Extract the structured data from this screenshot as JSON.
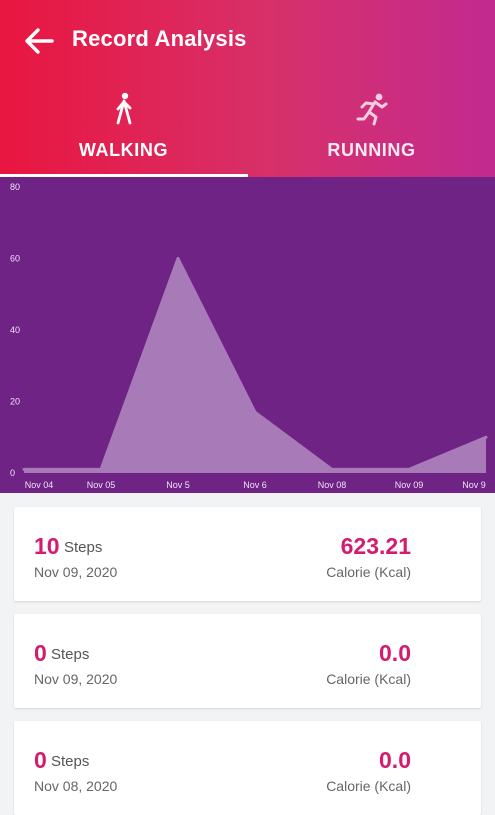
{
  "header": {
    "title": "Record Analysis",
    "colors": {
      "gradient_start": "#e91640",
      "gradient_end": "#c22a8f"
    }
  },
  "tabs": [
    {
      "label": "WALKING",
      "icon": "walking-icon",
      "selected": true
    },
    {
      "label": "RUNNING",
      "icon": "running-icon",
      "selected": false
    }
  ],
  "chart_data": {
    "type": "area",
    "categories": [
      "Nov 04",
      "Nov 05",
      "Nov 5",
      "Nov 6",
      "Nov 08",
      "Nov 09",
      "Nov 9"
    ],
    "values": [
      1,
      1,
      60,
      17,
      1,
      1,
      10
    ],
    "ylim": [
      0,
      80
    ],
    "yticks": [
      0,
      20,
      40,
      60,
      80
    ],
    "grid": false,
    "colors": {
      "background": "#6e2385",
      "fill": "#a87ab8",
      "line": "#a87ab8"
    }
  },
  "records": [
    {
      "steps": "10",
      "steps_unit": "Steps",
      "date": "Nov 09, 2020",
      "calorie": "623.21",
      "calorie_label": "Calorie (Kcal)"
    },
    {
      "steps": "0",
      "steps_unit": "Steps",
      "date": "Nov 09, 2020",
      "calorie": "0.0",
      "calorie_label": "Calorie (Kcal)"
    },
    {
      "steps": "0",
      "steps_unit": "Steps",
      "date": "Nov 08, 2020",
      "calorie": "0.0",
      "calorie_label": "Calorie (Kcal)"
    }
  ]
}
